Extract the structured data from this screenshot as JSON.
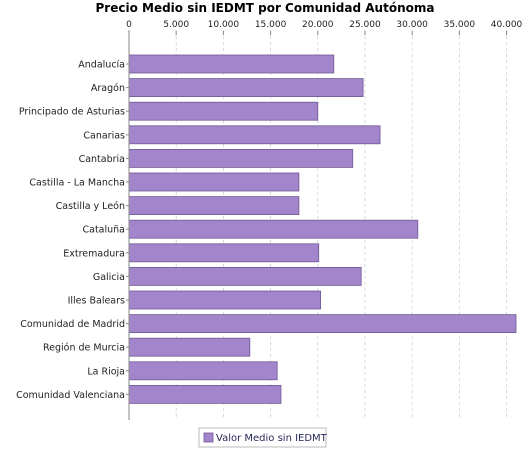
{
  "colors": {
    "bar_fill": "#a385cc",
    "bar_stroke": "#6f5a94",
    "grid": "#cfcfcf",
    "axis": "#888888"
  },
  "chart_data": {
    "type": "bar",
    "orientation": "horizontal",
    "title": "Precio Medio sin IEDMT por Comunidad Autónoma",
    "xlabel": "",
    "ylabel": "",
    "xlim": [
      0,
      41000
    ],
    "x_ticks": [
      0,
      5000,
      10000,
      15000,
      20000,
      25000,
      30000,
      35000,
      40000
    ],
    "x_tick_labels": [
      "0",
      "5.000",
      "10.000",
      "15.000",
      "20.000",
      "25.000",
      "30.000",
      "35.000",
      "40.000"
    ],
    "axis_position": "top",
    "grid": true,
    "legend_position": "bottom",
    "categories": [
      "Andalucía",
      "Aragón",
      "Principado de Asturias",
      "Canarias",
      "Cantabria",
      "Castilla - La Mancha",
      "Castilla y León",
      "Cataluña",
      "Extremadura",
      "Galicia",
      "Illes Balears",
      "Comunidad de Madrid",
      "Región de Murcia",
      "La Rioja",
      "Comunidad Valenciana"
    ],
    "series": [
      {
        "name": "Valor Medio sin IEDMT",
        "values": [
          21700,
          24800,
          20000,
          26600,
          23700,
          18000,
          18000,
          30600,
          20100,
          24600,
          20300,
          42600,
          12800,
          15700,
          16100
        ]
      }
    ]
  }
}
